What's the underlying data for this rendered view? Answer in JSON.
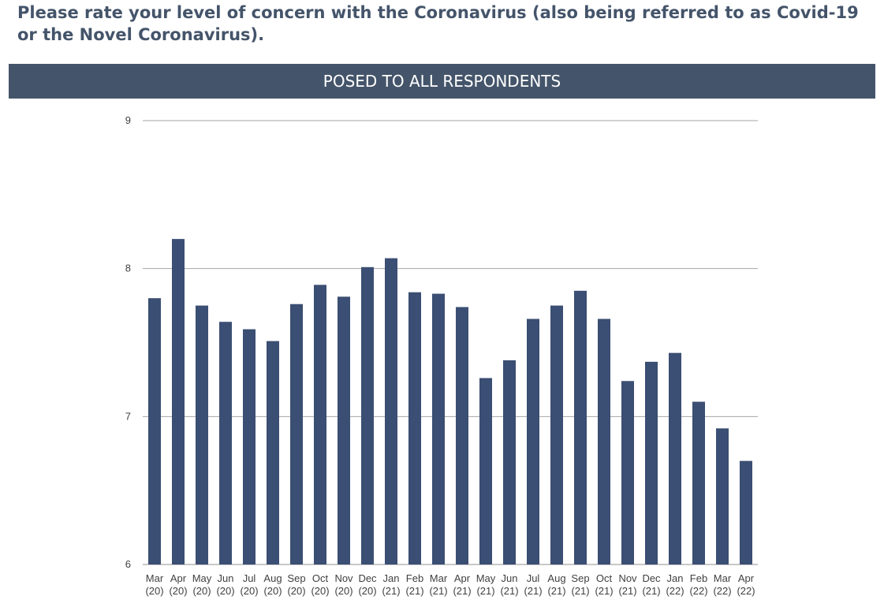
{
  "question": "Please rate your level of concern with the Coronavirus (also being referred to as Covid-19 or the Novel Coronavirus).",
  "banner": "POSED TO ALL RESPONDENTS",
  "colors": {
    "bar": "#3b4e73",
    "banner_bg": "#44546a",
    "question_text": "#44546a",
    "grid": "#a6a6a6"
  },
  "chart_data": {
    "type": "bar",
    "title": "",
    "xlabel": "",
    "ylabel": "",
    "ylim": [
      6,
      9
    ],
    "yticks": [
      6,
      7,
      8,
      9
    ],
    "grid": true,
    "legend": "none",
    "categories": [
      [
        "Mar",
        "(20)"
      ],
      [
        "Apr",
        "(20)"
      ],
      [
        "May",
        "(20)"
      ],
      [
        "Jun",
        "(20)"
      ],
      [
        "Jul",
        "(20)"
      ],
      [
        "Aug",
        "(20)"
      ],
      [
        "Sep",
        "(20)"
      ],
      [
        "Oct",
        "(20)"
      ],
      [
        "Nov",
        "(20)"
      ],
      [
        "Dec",
        "(20)"
      ],
      [
        "Jan",
        "(21)"
      ],
      [
        "Feb",
        "(21)"
      ],
      [
        "Mar",
        "(21)"
      ],
      [
        "Apr",
        "(21)"
      ],
      [
        "May",
        "(21)"
      ],
      [
        "Jun",
        "(21)"
      ],
      [
        "Jul",
        "(21)"
      ],
      [
        "Aug",
        "(21)"
      ],
      [
        "Sep",
        "(21)"
      ],
      [
        "Oct",
        "(21)"
      ],
      [
        "Nov",
        "(21)"
      ],
      [
        "Dec",
        "(21)"
      ],
      [
        "Jan",
        "(22)"
      ],
      [
        "Feb",
        "(22)"
      ],
      [
        "Mar",
        "(22)"
      ],
      [
        "Apr",
        "(22)"
      ]
    ],
    "values": [
      7.8,
      8.2,
      7.75,
      7.64,
      7.59,
      7.51,
      7.76,
      7.89,
      7.81,
      8.01,
      8.07,
      7.84,
      7.83,
      7.74,
      7.26,
      7.38,
      7.66,
      7.75,
      7.85,
      7.66,
      7.24,
      7.37,
      7.43,
      7.1,
      6.92,
      6.7
    ]
  }
}
